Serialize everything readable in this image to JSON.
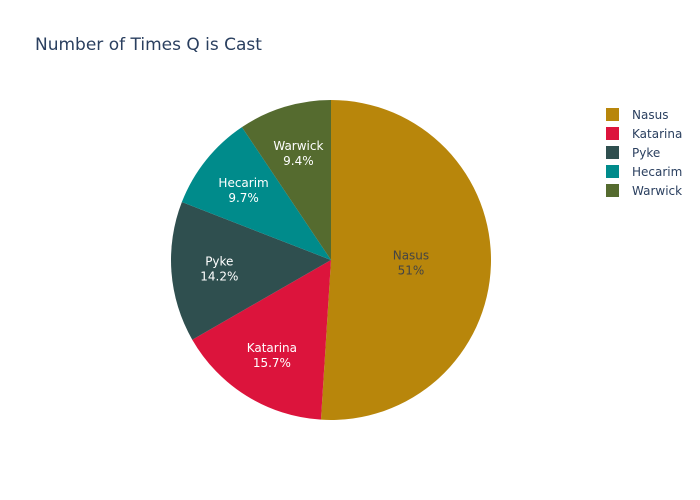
{
  "chart_data": {
    "type": "pie",
    "title": "Number of Times Q is Cast",
    "legend_placement": "top-right",
    "slices": [
      {
        "label": "Nasus",
        "value": 51,
        "percent_label": "51%",
        "color": "#b8860b",
        "text_color": "#444444"
      },
      {
        "label": "Katarina",
        "value": 15.7,
        "percent_label": "15.7%",
        "color": "#dc143c",
        "text_color": "#ffffff"
      },
      {
        "label": "Pyke",
        "value": 14.2,
        "percent_label": "14.2%",
        "color": "#2f4f4f",
        "text_color": "#ffffff"
      },
      {
        "label": "Hecarim",
        "value": 9.7,
        "percent_label": "9.7%",
        "color": "#008b8b",
        "text_color": "#ffffff"
      },
      {
        "label": "Warwick",
        "value": 9.4,
        "percent_label": "9.4%",
        "color": "#556b2f",
        "text_color": "#ffffff"
      }
    ]
  }
}
